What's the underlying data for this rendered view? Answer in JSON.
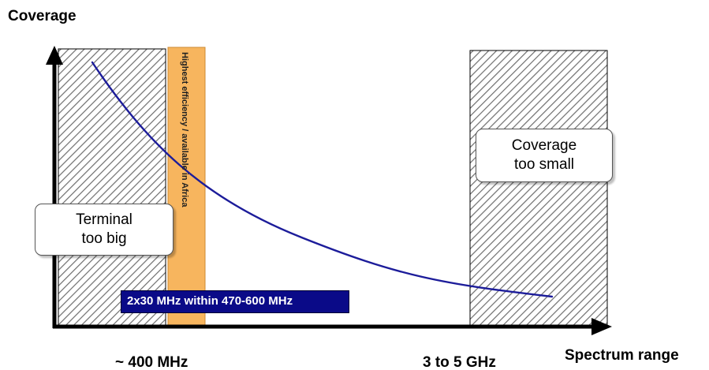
{
  "axes": {
    "y_title": "Coverage",
    "x_title": "Spectrum range",
    "x_ticks": [
      "~ 400 MHz",
      "3 to 5 GHz"
    ]
  },
  "regions": {
    "left": {
      "callout_lines": [
        "Terminal",
        "too big"
      ]
    },
    "right": {
      "callout_lines": [
        "Coverage",
        "too small"
      ]
    },
    "optimal_band": {
      "vertical_label": "Highest efficiency / available in Africa",
      "band_label": "2x30 MHz within 470-600 MHz"
    }
  },
  "colors": {
    "curve": "#1c1c9a",
    "optimal_band_fill": "#f7b55e",
    "band_label_fill": "#0a0a88",
    "hatch": "#6e6e6e",
    "axis": "#000000"
  }
}
